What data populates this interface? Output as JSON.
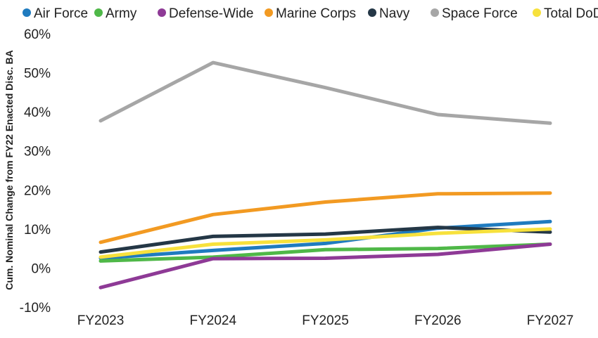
{
  "chart_data": {
    "type": "line",
    "title": "",
    "xlabel": "",
    "ylabel": "Cum. Nominal Change from FY22 Enacted Disc. BA",
    "categories": [
      "FY2023",
      "FY2024",
      "FY2025",
      "FY2026",
      "FY2027"
    ],
    "ylim": [
      -10,
      60
    ],
    "yticks": [
      -10,
      0,
      10,
      20,
      30,
      40,
      50,
      60
    ],
    "ytick_labels": [
      "-10%",
      "0%",
      "10%",
      "20%",
      "30%",
      "40%",
      "50%",
      "60%"
    ],
    "grid": false,
    "legend_position": "top",
    "series": [
      {
        "name": "Air Force",
        "color": "#1f7bbf",
        "values": [
          2.5,
          4.5,
          6.3,
          10.2,
          11.9
        ]
      },
      {
        "name": "Army",
        "color": "#4fb848",
        "values": [
          1.8,
          2.8,
          4.7,
          5.0,
          6.1
        ]
      },
      {
        "name": "Defense-Wide",
        "color": "#8e3a96",
        "values": [
          -5.0,
          2.4,
          2.5,
          3.5,
          6.1
        ]
      },
      {
        "name": "Marine Corps",
        "color": "#f29a22",
        "values": [
          6.6,
          13.7,
          16.9,
          19.0,
          19.2
        ]
      },
      {
        "name": "Navy",
        "color": "#243746",
        "values": [
          4.1,
          8.1,
          8.7,
          10.4,
          9.2
        ]
      },
      {
        "name": "Space Force",
        "color": "#a6a6a6",
        "values": [
          37.7,
          52.6,
          46.2,
          39.3,
          37.1
        ]
      },
      {
        "name": "Total DoD",
        "color": "#f7e13c",
        "values": [
          2.8,
          6.1,
          7.2,
          8.9,
          10.0
        ]
      }
    ]
  }
}
